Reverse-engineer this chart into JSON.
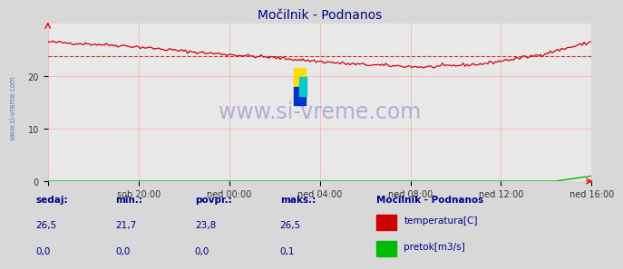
{
  "title": "Močilnik - Podnanos",
  "bg_color": "#d8d8d8",
  "plot_bg_color": "#e8e8e8",
  "grid_color": "#ffaaaa",
  "xlim": [
    0,
    288
  ],
  "ylim": [
    0,
    30
  ],
  "xtick_positions": [
    0,
    48,
    96,
    144,
    192,
    240,
    288
  ],
  "xtick_labels": [
    "",
    "sob 20:00",
    "ned 00:00",
    "ned 04:00",
    "ned 08:00",
    "ned 12:00",
    "ned 16:00"
  ],
  "yticks": [
    0,
    10,
    20
  ],
  "ytick_labels": [
    "0",
    "10",
    "20"
  ],
  "avg_value": 23.8,
  "min_value": 21.7,
  "max_value": 26.5,
  "current_value": 26.5,
  "temp_color": "#cc0000",
  "flow_color": "#00bb00",
  "avg_line_color": "#cc0000",
  "watermark": "www.si-vreme.com",
  "watermark_color": "#aaaacc",
  "ylabel_text": "www.si-vreme.com",
  "ylabel_color": "#6688aa",
  "legend_title": "Močilnik - Podnanos",
  "label_color": "#000088",
  "stats_labels": [
    "sedaj:",
    "min.:",
    "povpr.:",
    "maks.:"
  ],
  "stats_temp": [
    "26,5",
    "21,7",
    "23,8",
    "26,5"
  ],
  "stats_flow": [
    "0,0",
    "0,0",
    "0,0",
    "0,1"
  ],
  "temp_label": "temperatura[C]",
  "flow_label": "pretok[m3/s]",
  "keypoints_x": [
    0,
    40,
    80,
    120,
    160,
    200,
    230,
    260,
    288
  ],
  "keypoints_y": [
    26.5,
    25.8,
    24.5,
    23.5,
    22.3,
    21.7,
    22.3,
    24.0,
    26.5
  ]
}
